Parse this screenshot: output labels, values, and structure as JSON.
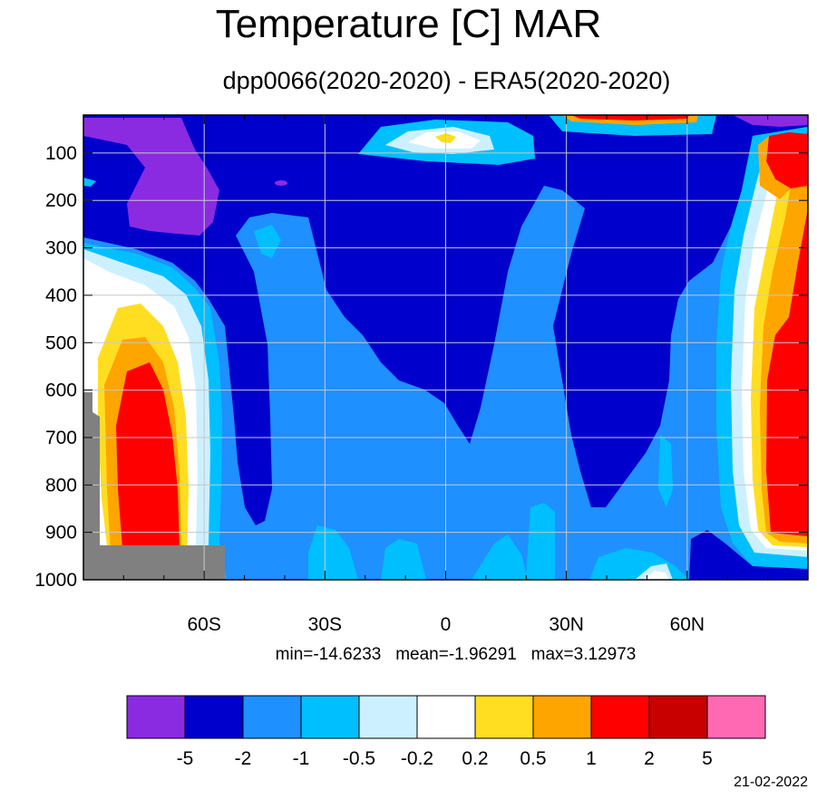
{
  "title": "Temperature [C] MAR",
  "subtitle": "dpp0066(2020-2020) - ERA5(2020-2020)",
  "stats": "min=-14.6233   mean=-1.96291   max=3.12973",
  "datestamp": "21-02-2022",
  "chart_data": {
    "type": "heatmap",
    "title": "Temperature [C] MAR",
    "subtitle": "dpp0066(2020-2020) - ERA5(2020-2020)",
    "x_axis": {
      "range": [
        -90,
        90
      ],
      "ticks": [
        -60,
        -30,
        0,
        30,
        60
      ],
      "tick_labels": [
        "60S",
        "30S",
        "0",
        "30N",
        "60N"
      ]
    },
    "y_axis": {
      "range": [
        1000,
        20
      ],
      "reversed": true,
      "ticks": [
        100,
        200,
        300,
        400,
        500,
        600,
        700,
        800,
        900,
        1000
      ],
      "tick_labels": [
        "100",
        "200",
        "300",
        "400",
        "500",
        "600",
        "700",
        "800",
        "900",
        "1000"
      ]
    },
    "grid": true,
    "colorbar": {
      "placement": "bottom",
      "levels": [
        "-5",
        "-2",
        "-1",
        "-0.5",
        "-0.2",
        "0.2",
        "0.5",
        "1",
        "2",
        "5"
      ],
      "colors": [
        "#8a2be2",
        "#0000cd",
        "#1e90ff",
        "#00bfff",
        "#ccf0ff",
        "#ffffff",
        "#ffde21",
        "#ffa500",
        "#ff0000",
        "#c80000",
        "#ff69b4"
      ]
    },
    "statistics": {
      "min": -14.6233,
      "mean": -1.96291,
      "max": 3.12973
    },
    "missing_color": "#808080"
  }
}
